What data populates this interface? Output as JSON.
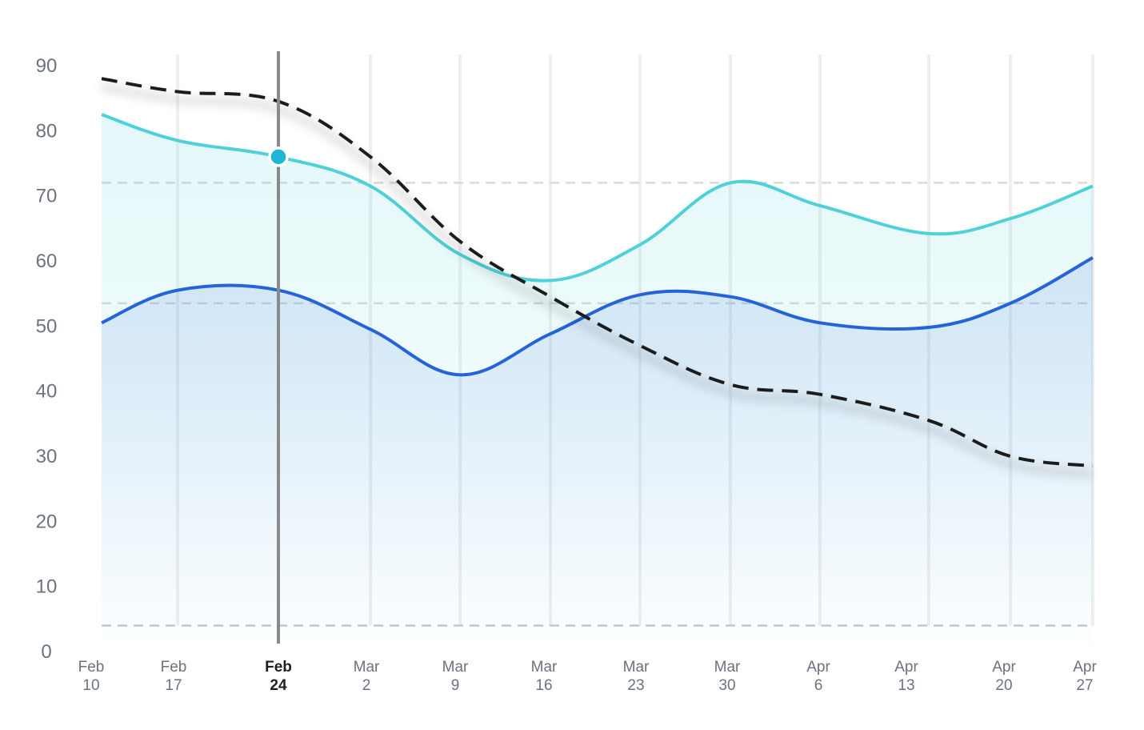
{
  "chart_data": {
    "type": "line",
    "title": "",
    "xlabel": "",
    "ylabel": "",
    "ylim": [
      0,
      90
    ],
    "yticks": [
      "0",
      "10",
      "20",
      "30",
      "40",
      "50",
      "60",
      "70",
      "80",
      "90"
    ],
    "ytick_values": [
      0,
      10,
      20,
      30,
      40,
      50,
      60,
      70,
      80,
      90
    ],
    "categories": [
      {
        "line1": "Feb",
        "line2": "10"
      },
      {
        "line1": "Feb",
        "line2": "17"
      },
      {
        "line1": "Feb",
        "line2": "24"
      },
      {
        "line1": "Mar",
        "line2": "2"
      },
      {
        "line1": "Mar",
        "line2": "9"
      },
      {
        "line1": "Mar",
        "line2": "16"
      },
      {
        "line1": "Mar",
        "line2": "23"
      },
      {
        "line1": "Mar",
        "line2": "30"
      },
      {
        "line1": "Apr",
        "line2": "6"
      },
      {
        "line1": "Apr",
        "line2": "13"
      },
      {
        "line1": "Apr",
        "line2": "20"
      },
      {
        "line1": "Apr",
        "line2": "27"
      }
    ],
    "active_category_index": 2,
    "reference_lines": [
      4,
      53.5,
      72
    ],
    "series": [
      {
        "name": "teal",
        "color": "#4fd1d9",
        "style": "solid",
        "fill": true,
        "values": [
          82.5,
          78.5,
          76,
          71.5,
          61,
          57,
          62.5,
          72,
          68.5,
          64.2,
          66.5,
          71.5
        ]
      },
      {
        "name": "blue",
        "color": "#2563d9",
        "style": "solid",
        "fill": true,
        "values": [
          50.5,
          55.5,
          55.5,
          49.5,
          42.5,
          48.8,
          54.8,
          54.5,
          50.5,
          49.8,
          53.5,
          60.5
        ]
      },
      {
        "name": "dashed",
        "color": "#1c1c1c",
        "style": "dashed",
        "fill": false,
        "values": [
          88,
          86,
          84.5,
          76,
          63,
          54.5,
          47,
          41,
          39.5,
          35.5,
          30,
          28.5
        ]
      }
    ],
    "highlight_point": {
      "series": "teal",
      "index": 2,
      "value": 76,
      "color": "#1fb8d4"
    }
  }
}
